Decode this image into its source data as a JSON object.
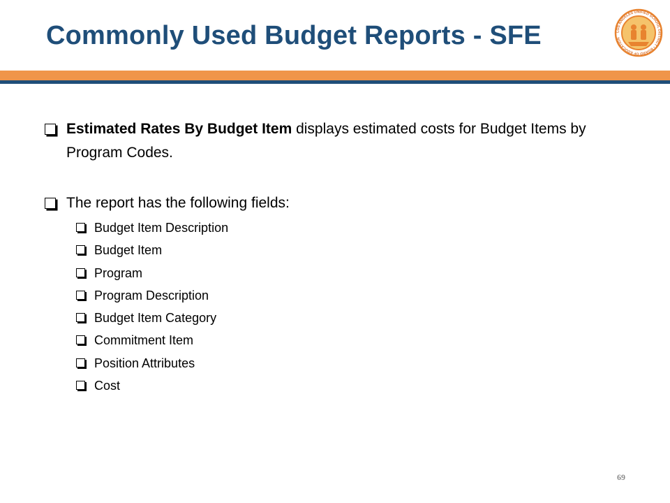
{
  "title": "Commonly Used Budget Reports - SFE",
  "logo": {
    "name": "lausd-board-of-education-seal",
    "text": "LOS ANGELES UNIFIED SCHOOL DISTRICT • BOARD OF EDUCATION",
    "colors": {
      "ring": "#e8832f",
      "inner": "#f5c36b"
    }
  },
  "colors": {
    "title": "#1f4e79",
    "rule_orange": "#f0954a",
    "rule_navy": "#1f4e79"
  },
  "bullets": [
    {
      "bold": "Estimated Rates By Budget Item",
      "text": " displays estimated costs for Budget Items by Program Codes."
    },
    {
      "text": "The report has the following fields:",
      "sub_items": [
        "Budget Item Description",
        "Budget Item",
        "Program",
        "Program Description",
        "Budget Item Category",
        "Commitment Item",
        "Position Attributes",
        "Cost"
      ]
    }
  ],
  "page_number": "69"
}
